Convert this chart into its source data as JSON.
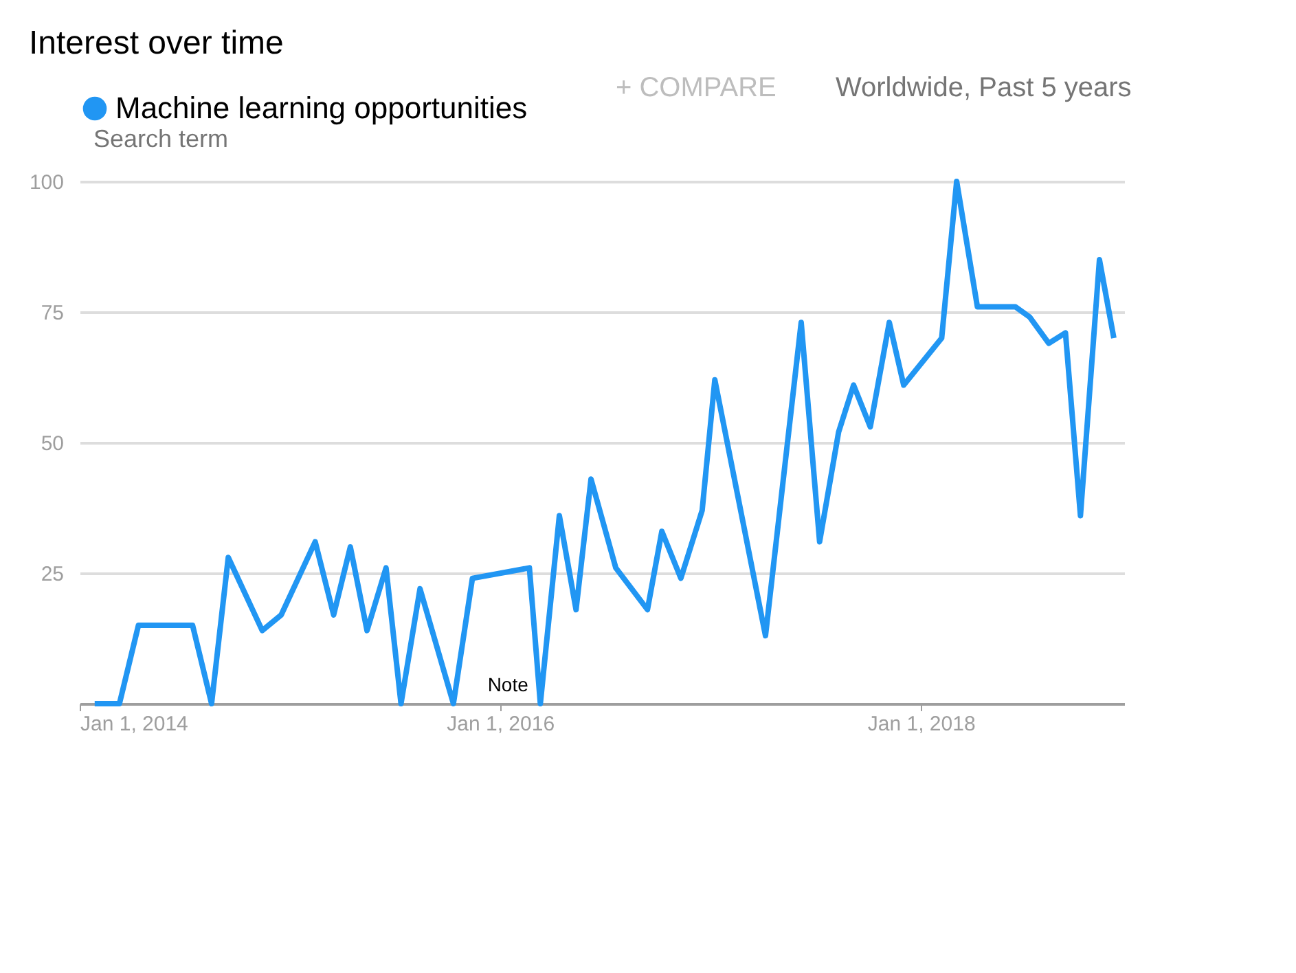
{
  "chart_data": {
    "type": "line",
    "title": "Interest over time",
    "annotations": [
      "Search term",
      "+ COMPARE",
      "Worldwide, Past 5 years",
      "Note"
    ],
    "x": [
      "2014-01-27",
      "2014-03-11",
      "2014-04-13",
      "2014-07-16",
      "2014-08-18",
      "2014-09-16",
      "2014-11-14",
      "2014-12-17",
      "2015-02-14",
      "2015-03-18",
      "2015-04-16",
      "2015-05-15",
      "2015-06-17",
      "2015-07-13",
      "2015-08-15",
      "2015-10-12",
      "2015-11-14",
      "2016-02-21",
      "2016-03-11",
      "2016-04-13",
      "2016-05-12",
      "2016-06-07",
      "2016-07-20",
      "2016-09-13",
      "2016-10-08",
      "2016-11-10",
      "2016-12-17",
      "2017-01-08",
      "2017-04-06",
      "2017-06-07",
      "2017-07-09",
      "2017-08-11",
      "2017-09-06",
      "2017-10-05",
      "2017-11-07",
      "2017-12-02",
      "2018-02-06",
      "2018-03-04",
      "2018-04-09",
      "2018-05-12",
      "2018-06-14",
      "2018-07-09",
      "2018-08-11",
      "2018-09-09",
      "2018-10-05",
      "2018-11-07",
      "2018-12-02"
    ],
    "series": [
      {
        "name": "Machine learning opportunities",
        "color": "#2196f3",
        "values": [
          0,
          0,
          15,
          15,
          0,
          28,
          14,
          17,
          31,
          17,
          30,
          14,
          26,
          0,
          22,
          0,
          24,
          26,
          0,
          36,
          18,
          43,
          26,
          18,
          33,
          24,
          37,
          62,
          13,
          73,
          31,
          52,
          61,
          53,
          73,
          61,
          70,
          100,
          76,
          76,
          76,
          74,
          69,
          71,
          36,
          85,
          70
        ]
      }
    ],
    "xlim": [
      "2014-01-01",
      "2018-12-20"
    ],
    "xticks": [
      {
        "value": "2014-01-01",
        "label": "Jan 1, 2014"
      },
      {
        "value": "2016-01-01",
        "label": "Jan 1, 2016"
      },
      {
        "value": "2018-01-01",
        "label": "Jan 1, 2018"
      }
    ],
    "ylim": [
      0,
      100
    ],
    "yticks": [
      25,
      50,
      75,
      100
    ],
    "grid": "y",
    "legend": "top",
    "marker": "none",
    "line_style": "solid"
  }
}
